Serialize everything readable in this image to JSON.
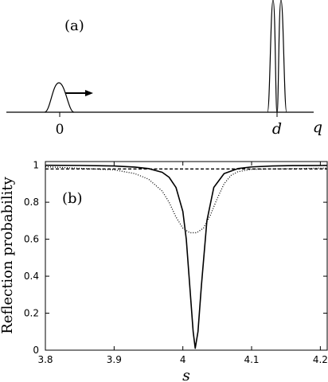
{
  "panel_a": {
    "label": "(a)",
    "axis_label": "q",
    "tick_labels": [
      "0",
      "d"
    ]
  },
  "chart_data": {
    "type": "line",
    "panel_label": "(b)",
    "xlabel": "s",
    "ylabel": "Reflection probability",
    "xlim": [
      3.8,
      4.21
    ],
    "ylim": [
      0,
      1.02
    ],
    "xticks": [
      3.8,
      3.9,
      4.0,
      4.1,
      4.2
    ],
    "xtick_labels": [
      "3.8",
      "3.9",
      "4",
      "4.1",
      "4.2"
    ],
    "yticks": [
      0,
      0.2,
      0.4,
      0.6,
      0.8,
      1
    ],
    "ytick_labels": [
      "0",
      "0.2",
      "0.4",
      "0.6",
      "0.8",
      "1"
    ],
    "grid": false,
    "series": [
      {
        "style": "solid",
        "x": [
          3.8,
          3.85,
          3.9,
          3.93,
          3.95,
          3.97,
          3.98,
          3.99,
          4.0,
          4.005,
          4.01,
          4.015,
          4.018,
          4.022,
          4.027,
          4.035,
          4.045,
          4.06,
          4.08,
          4.1,
          4.13,
          4.16,
          4.21
        ],
        "y": [
          1.0,
          0.999,
          0.996,
          0.99,
          0.982,
          0.962,
          0.935,
          0.88,
          0.75,
          0.6,
          0.35,
          0.1,
          0.01,
          0.1,
          0.35,
          0.7,
          0.88,
          0.955,
          0.982,
          0.991,
          0.996,
          0.998,
          0.999
        ]
      },
      {
        "style": "dashed",
        "x": [
          3.8,
          3.9,
          4.0,
          4.1,
          4.21
        ],
        "y": [
          0.98,
          0.98,
          0.98,
          0.98,
          0.98
        ]
      },
      {
        "style": "dotted",
        "x": [
          3.8,
          3.9,
          3.93,
          3.95,
          3.97,
          3.98,
          3.99,
          4.0,
          4.01,
          4.02,
          4.03,
          4.04,
          4.05,
          4.06,
          4.07,
          4.08,
          4.1,
          4.21
        ],
        "y": [
          0.992,
          0.975,
          0.955,
          0.925,
          0.86,
          0.8,
          0.72,
          0.66,
          0.635,
          0.635,
          0.66,
          0.73,
          0.82,
          0.9,
          0.945,
          0.965,
          0.978,
          0.985
        ]
      }
    ]
  }
}
